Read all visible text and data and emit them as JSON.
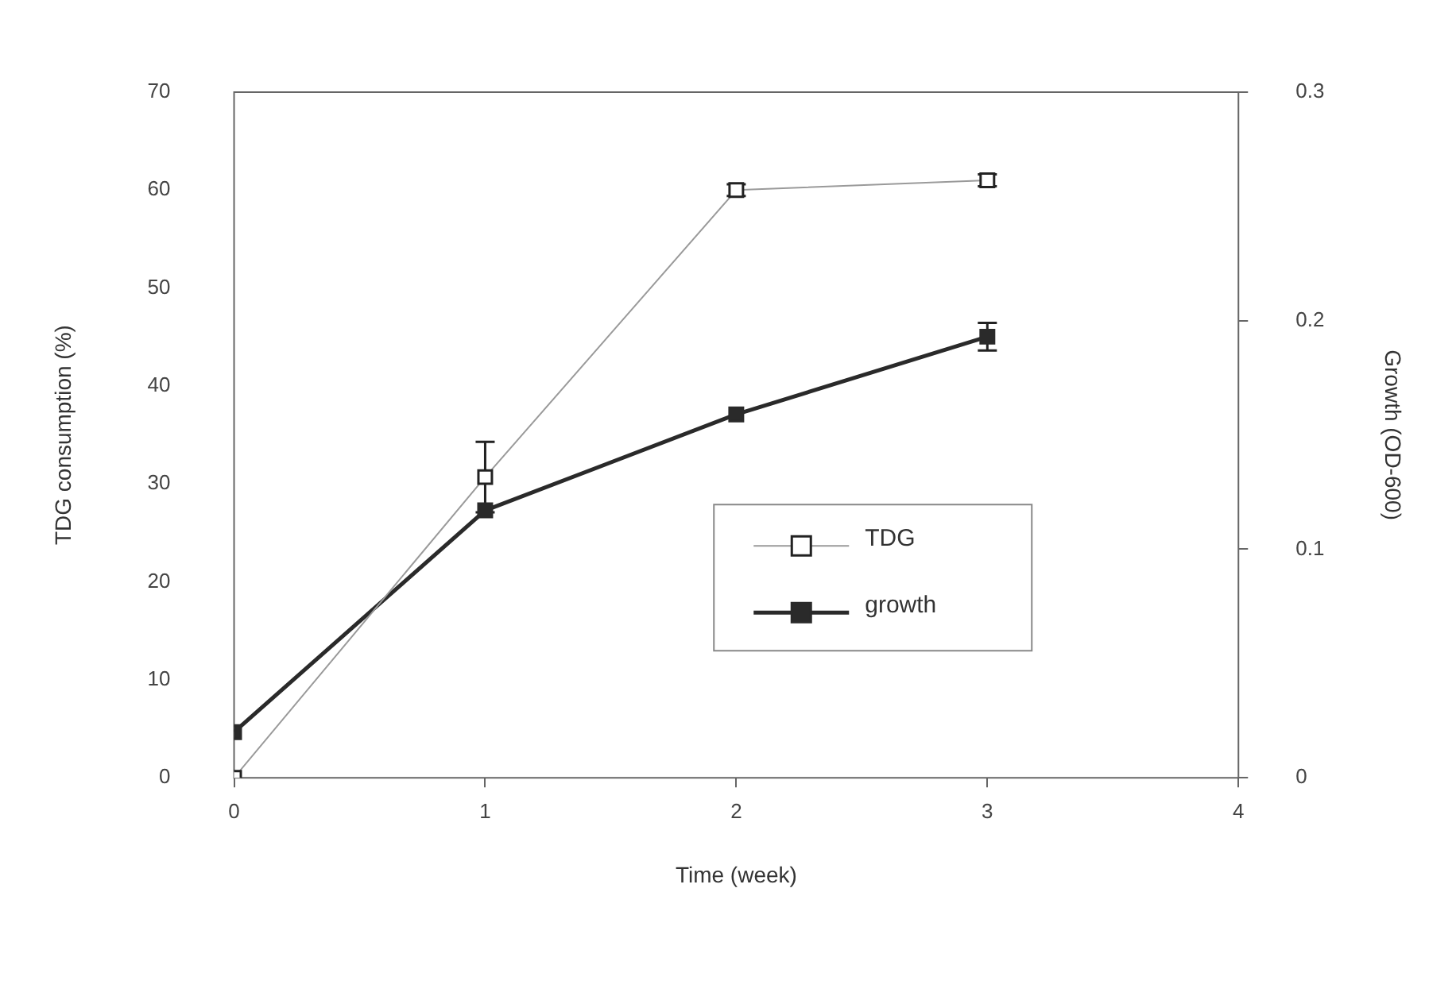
{
  "chart_data": {
    "type": "line",
    "xlabel": "Time (week)",
    "ylabel": "TDG consumption (%)",
    "y2label": "Growth (OD-600)",
    "x": [
      0,
      1,
      2,
      3
    ],
    "series": [
      {
        "name": "TDG",
        "color": "#9a9a9a",
        "marker": "square",
        "values": [
          0,
          30.7,
          60,
          61
        ],
        "errors": [
          null,
          3.6,
          0.6,
          0.6
        ]
      },
      {
        "name": "growth",
        "color": "#2a2a2a",
        "marker": "square",
        "axis": "y2",
        "values": [
          0.02,
          0.117,
          0.159,
          0.193
        ],
        "errors": [
          null,
          null,
          null,
          0.006
        ]
      }
    ],
    "xlim": [
      0,
      4
    ],
    "xticks": [
      0,
      1,
      2,
      3,
      4
    ],
    "ylim": [
      0,
      70
    ],
    "yticks": [
      0,
      10,
      20,
      30,
      40,
      50,
      60,
      70
    ],
    "y2lim": [
      0,
      0.3
    ],
    "y2ticks": [
      0,
      0.1,
      0.2,
      0.3
    ],
    "grid": false,
    "legend": "bottom right"
  }
}
